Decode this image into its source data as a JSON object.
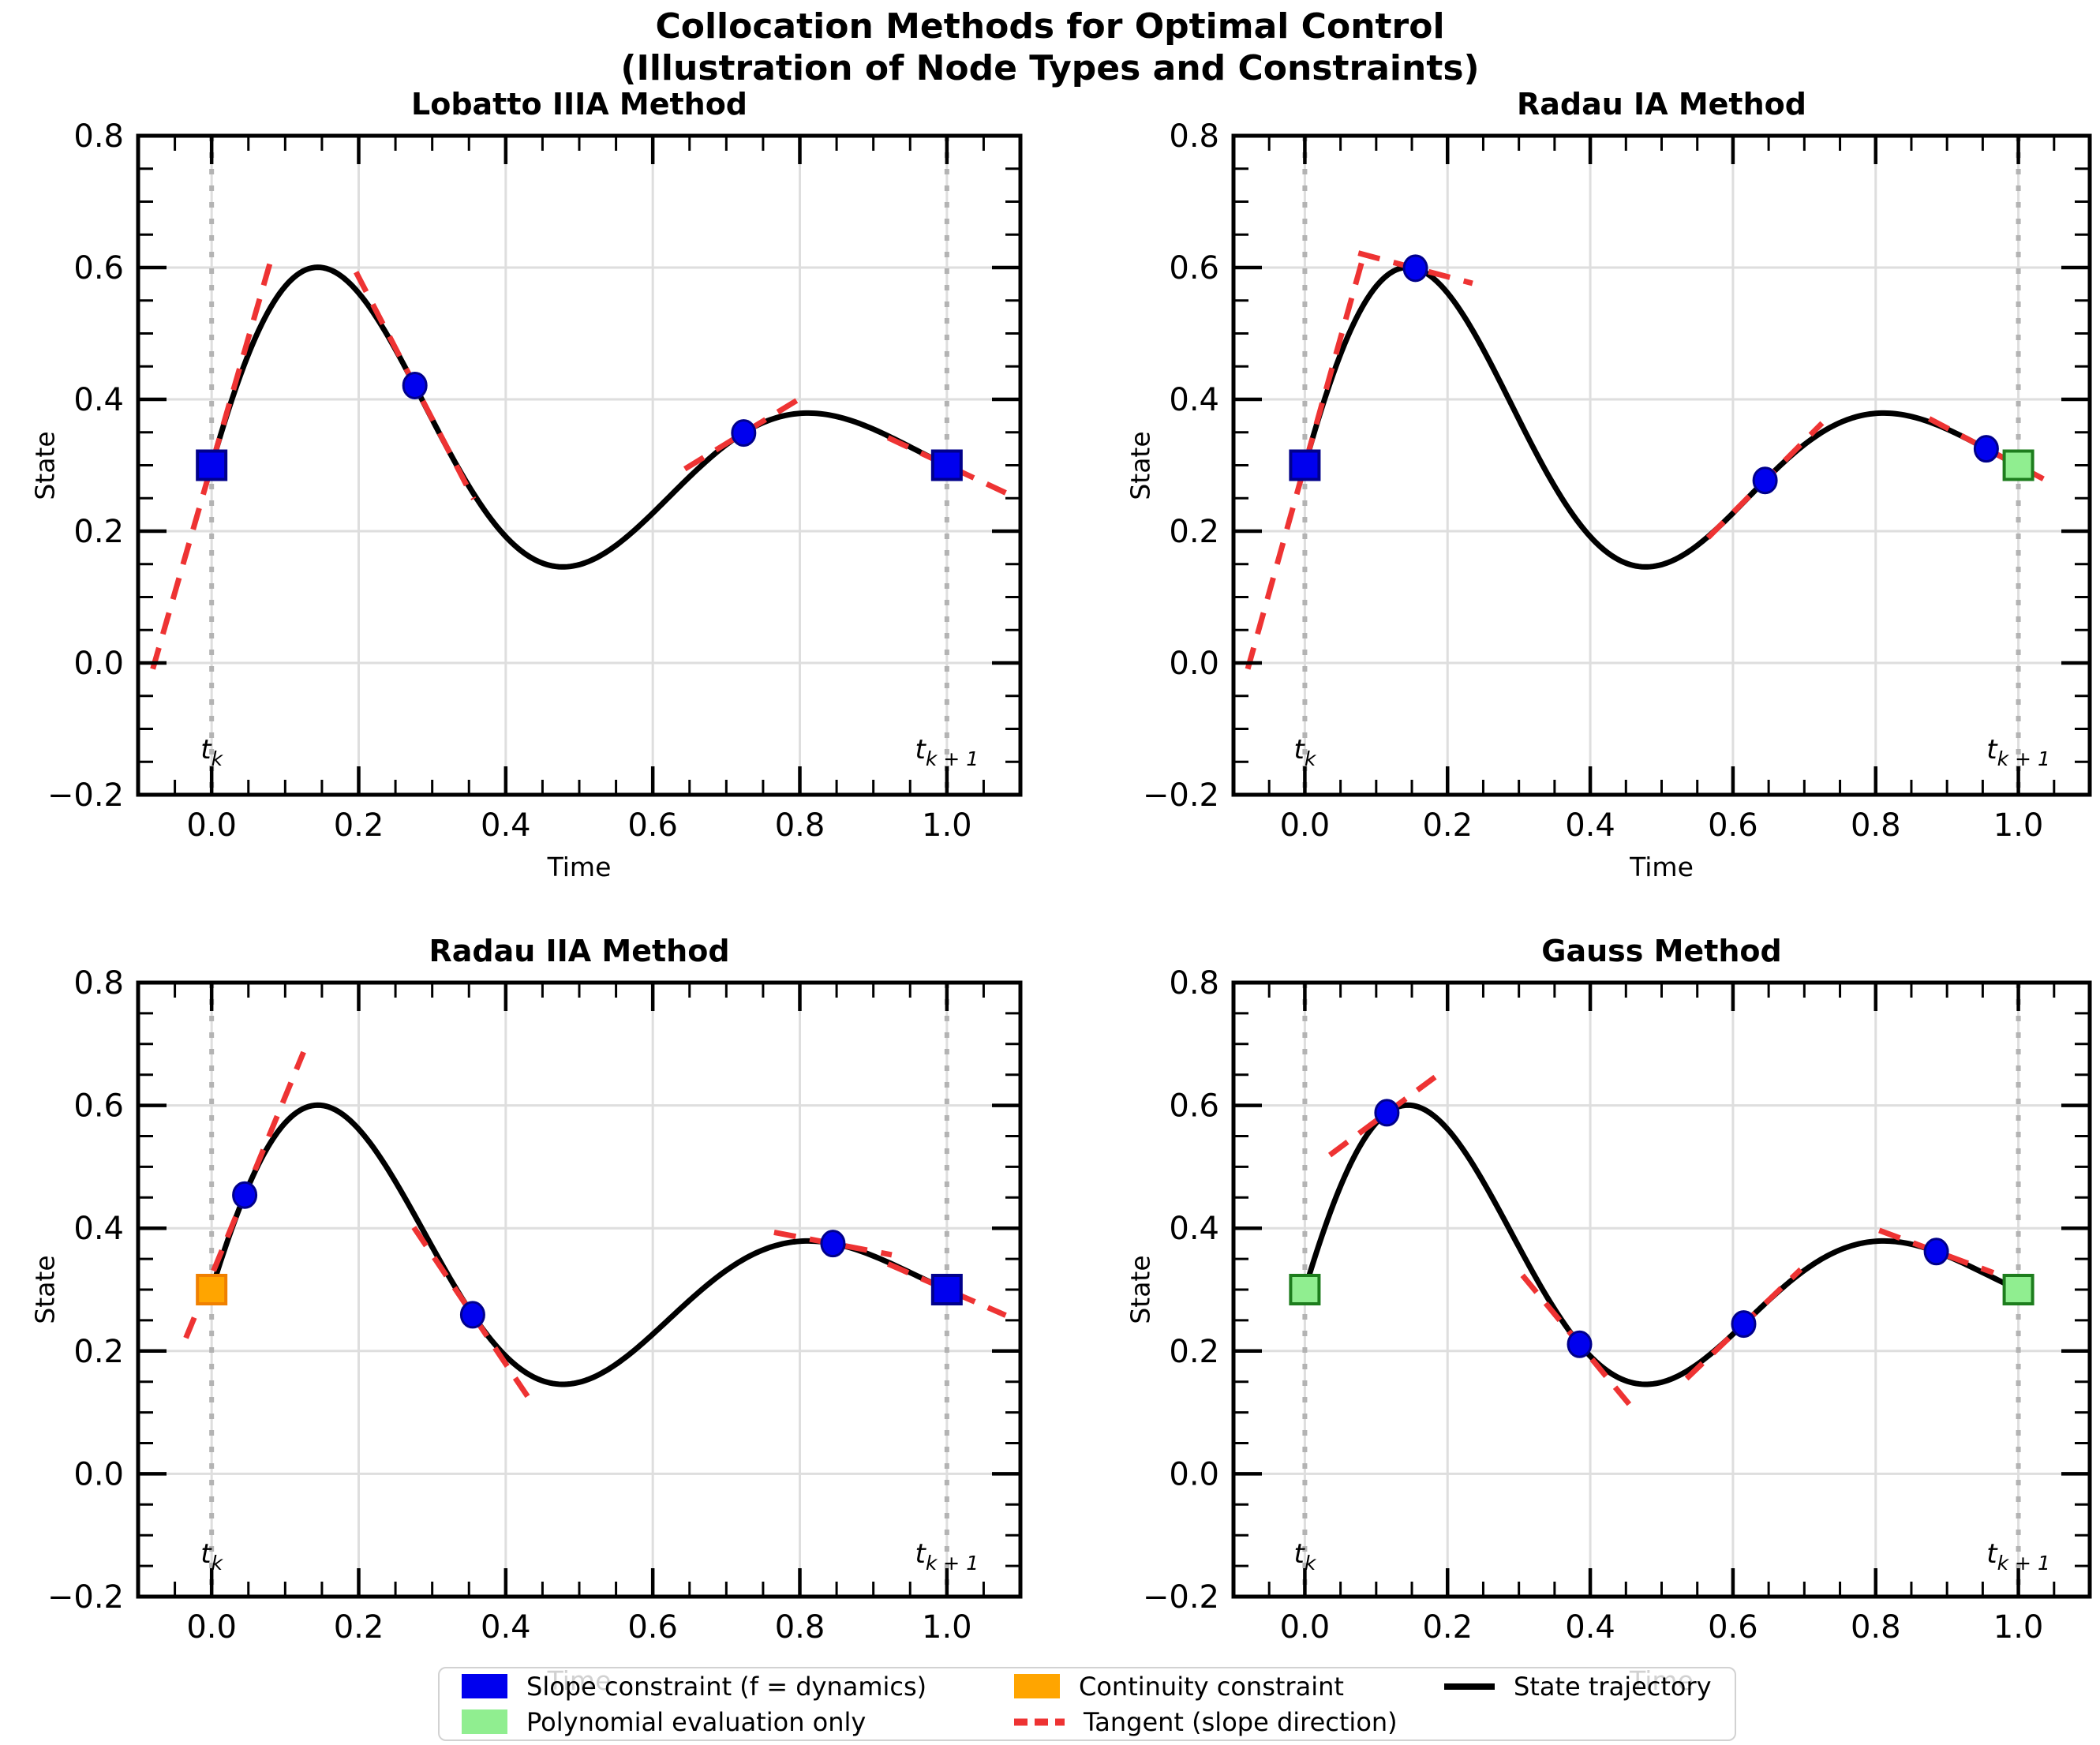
{
  "figure": {
    "suptitle_line1": "Collocation Methods for Optimal Control",
    "suptitle_line2": "(Illustration of Node Types and Constraints)"
  },
  "colors": {
    "slope_fill": "#0000ee",
    "slope_edge": "#00008b",
    "poly_fill": "#90ee90",
    "poly_edge": "#1d7d1d",
    "continuity_fill": "#ffa500",
    "continuity_edge": "#f08000",
    "tangent": "#ee3333",
    "trajectory": "#000000",
    "grid": "#dedede",
    "interval_line": "#b3b3b3",
    "legend_border": "#d2d2d2",
    "text": "#000000"
  },
  "axes": {
    "xlabel": "Time",
    "ylabel": "State",
    "xlim": [
      -0.1,
      1.1
    ],
    "ylim": [
      -0.2,
      0.8
    ],
    "xticks": [
      0.0,
      0.2,
      0.4,
      0.6,
      0.8,
      1.0
    ],
    "xtick_labels": [
      "0.0",
      "0.2",
      "0.4",
      "0.6",
      "0.8",
      "1.0"
    ],
    "yticks": [
      0.8,
      0.6,
      0.4,
      0.2,
      0.0,
      -0.2
    ],
    "ytick_labels": [
      "0.8",
      "0.6",
      "0.4",
      "0.2",
      "0.0",
      "−0.2"
    ],
    "minor_step": 0.05,
    "t_symbol": "t",
    "tk_sub": "k",
    "tk1_sub": "k + 1",
    "interval_lines_x": [
      0.0,
      1.0
    ]
  },
  "legend": {
    "items": [
      {
        "type": "patch",
        "color": "slope",
        "label": "Slope constraint (f = dynamics)"
      },
      {
        "type": "patch",
        "color": "poly",
        "label": "Polynomial evaluation only"
      },
      {
        "type": "patch",
        "color": "continuity",
        "label": "Continuity constraint"
      },
      {
        "type": "dashed",
        "color": "tangent",
        "label": "Tangent (slope direction)"
      },
      {
        "type": "line",
        "color": "trajectory",
        "label": "State trajectory"
      }
    ]
  },
  "chart_data": [
    {
      "type": "line",
      "title": "Lobatto IIIA Method",
      "xlabel": "Time",
      "ylabel": "State",
      "xlim": [
        -0.1,
        1.1
      ],
      "ylim": [
        -0.2,
        0.8
      ],
      "trajectory": {
        "formula": "y(t) = 0.3 + 0.41*exp(-2t)*sin(3*pi*t)",
        "y0": 0.3,
        "amplitude": 0.41,
        "decay": 2.0,
        "omega_pi": 3
      },
      "tangent_half_dt": 0.08,
      "nodes": [
        {
          "t": 0.0,
          "y": 0.3,
          "marker": "square",
          "role": "slope",
          "tangent": true
        },
        {
          "t": 0.2764,
          "y": 0.421,
          "marker": "circle",
          "role": "slope",
          "tangent": true
        },
        {
          "t": 0.7236,
          "y": 0.349,
          "marker": "circle",
          "role": "slope",
          "tangent": true
        },
        {
          "t": 1.0,
          "y": 0.3,
          "marker": "square",
          "role": "slope",
          "tangent": true
        }
      ]
    },
    {
      "type": "line",
      "title": "Radau IA Method",
      "xlabel": "Time",
      "ylabel": "State",
      "xlim": [
        -0.1,
        1.1
      ],
      "ylim": [
        -0.2,
        0.8
      ],
      "trajectory": {
        "formula": "y(t) = 0.3 + 0.41*exp(-2t)*sin(3*pi*t)",
        "y0": 0.3,
        "amplitude": 0.41,
        "decay": 2.0,
        "omega_pi": 3
      },
      "tangent_half_dt": 0.08,
      "nodes": [
        {
          "t": 0.0,
          "y": 0.3,
          "marker": "square",
          "role": "slope",
          "tangent": true
        },
        {
          "t": 0.155,
          "y": 0.599,
          "marker": "circle",
          "role": "slope",
          "tangent": true
        },
        {
          "t": 0.645,
          "y": 0.277,
          "marker": "circle",
          "role": "slope",
          "tangent": true
        },
        {
          "t": 0.955,
          "y": 0.325,
          "marker": "circle",
          "role": "slope",
          "tangent": true
        },
        {
          "t": 1.0,
          "y": 0.3,
          "marker": "square",
          "role": "poly",
          "tangent": false
        }
      ]
    },
    {
      "type": "line",
      "title": "Radau IIA Method",
      "xlabel": "Time",
      "ylabel": "State",
      "xlim": [
        -0.1,
        1.1
      ],
      "ylim": [
        -0.2,
        0.8
      ],
      "trajectory": {
        "formula": "y(t) = 0.3 + 0.41*exp(-2t)*sin(3*pi*t)",
        "y0": 0.3,
        "amplitude": 0.41,
        "decay": 2.0,
        "omega_pi": 3
      },
      "tangent_half_dt": 0.08,
      "nodes": [
        {
          "t": 0.0,
          "y": 0.3,
          "marker": "square",
          "role": "continuity",
          "tangent": false
        },
        {
          "t": 0.045,
          "y": 0.454,
          "marker": "circle",
          "role": "slope",
          "tangent": true
        },
        {
          "t": 0.355,
          "y": 0.259,
          "marker": "circle",
          "role": "slope",
          "tangent": true
        },
        {
          "t": 0.845,
          "y": 0.375,
          "marker": "circle",
          "role": "slope",
          "tangent": true
        },
        {
          "t": 1.0,
          "y": 0.3,
          "marker": "square",
          "role": "slope",
          "tangent": true
        }
      ]
    },
    {
      "type": "line",
      "title": "Gauss Method",
      "xlabel": "Time",
      "ylabel": "State",
      "xlim": [
        -0.1,
        1.1
      ],
      "ylim": [
        -0.2,
        0.8
      ],
      "trajectory": {
        "formula": "y(t) = 0.3 + 0.41*exp(-2t)*sin(3*pi*t)",
        "y0": 0.3,
        "amplitude": 0.41,
        "decay": 2.0,
        "omega_pi": 3
      },
      "tangent_half_dt": 0.08,
      "nodes": [
        {
          "t": 0.0,
          "y": 0.3,
          "marker": "square",
          "role": "poly",
          "tangent": false
        },
        {
          "t": 0.115,
          "y": 0.588,
          "marker": "circle",
          "role": "slope",
          "tangent": true
        },
        {
          "t": 0.385,
          "y": 0.211,
          "marker": "circle",
          "role": "slope",
          "tangent": true
        },
        {
          "t": 0.615,
          "y": 0.244,
          "marker": "circle",
          "role": "slope",
          "tangent": true
        },
        {
          "t": 0.885,
          "y": 0.362,
          "marker": "circle",
          "role": "slope",
          "tangent": true
        },
        {
          "t": 1.0,
          "y": 0.3,
          "marker": "square",
          "role": "poly",
          "tangent": false
        }
      ]
    }
  ]
}
